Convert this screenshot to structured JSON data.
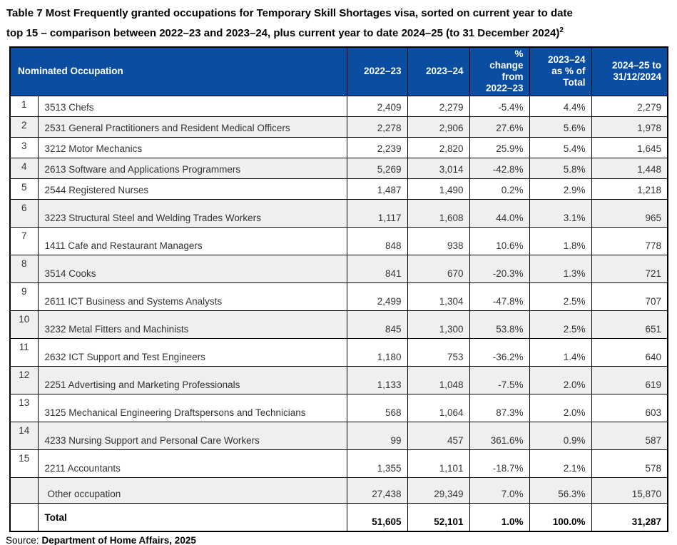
{
  "page": {
    "title_line1": "Table 7 Most Frequently granted occupations for Temporary Skill Shortages visa, sorted on current year to date",
    "title_line2": "top 15 – comparison between 2022–23 and 2023–24, plus current year to date 2024–25 (to 31 December 2024)",
    "title_footnote": "2",
    "source_prefix": "Source:",
    "source_text": "Department of Home Affairs, 2025"
  },
  "table": {
    "header": {
      "occupation": "Nominated Occupation",
      "col_2022_23": "2022–23",
      "col_2023_24": "2023–24",
      "col_pct_change": "% change from 2022–23",
      "col_pct_total": "2023–24 as % of Total",
      "col_ytd": "2024–25 to 31/12/2024"
    },
    "rows": [
      {
        "rank": "1",
        "occupation": "3513 Chefs",
        "v2022_23": "2,409",
        "v2023_24": "2,279",
        "pct_change": "-5.4%",
        "pct_total": "4.4%",
        "ytd": "2,279"
      },
      {
        "rank": "2",
        "occupation": "2531 General Practitioners and Resident Medical Officers",
        "v2022_23": "2,278",
        "v2023_24": "2,906",
        "pct_change": "27.6%",
        "pct_total": "5.6%",
        "ytd": "1,978"
      },
      {
        "rank": "3",
        "occupation": "3212 Motor Mechanics",
        "v2022_23": "2,239",
        "v2023_24": "2,820",
        "pct_change": "25.9%",
        "pct_total": "5.4%",
        "ytd": "1,645"
      },
      {
        "rank": "4",
        "occupation": "2613 Software and Applications Programmers",
        "v2022_23": "5,269",
        "v2023_24": "3,014",
        "pct_change": "-42.8%",
        "pct_total": "5.8%",
        "ytd": "1,448"
      },
      {
        "rank": "5",
        "occupation": "2544 Registered Nurses",
        "v2022_23": "1,487",
        "v2023_24": "1,490",
        "pct_change": "0.2%",
        "pct_total": "2.9%",
        "ytd": "1,218"
      },
      {
        "rank": "6",
        "occupation": "3223 Structural Steel and Welding Trades Workers",
        "v2022_23": "1,117",
        "v2023_24": "1,608",
        "pct_change": "44.0%",
        "pct_total": "3.1%",
        "ytd": "965"
      },
      {
        "rank": "7",
        "occupation": "1411 Cafe and Restaurant Managers",
        "v2022_23": "848",
        "v2023_24": "938",
        "pct_change": "10.6%",
        "pct_total": "1.8%",
        "ytd": "778"
      },
      {
        "rank": "8",
        "occupation": "3514 Cooks",
        "v2022_23": "841",
        "v2023_24": "670",
        "pct_change": "-20.3%",
        "pct_total": "1.3%",
        "ytd": "721"
      },
      {
        "rank": "9",
        "occupation": "2611 ICT Business and Systems Analysts",
        "v2022_23": "2,499",
        "v2023_24": "1,304",
        "pct_change": "-47.8%",
        "pct_total": "2.5%",
        "ytd": "707"
      },
      {
        "rank": "10",
        "occupation": "3232 Metal Fitters and Machinists",
        "v2022_23": "845",
        "v2023_24": "1,300",
        "pct_change": "53.8%",
        "pct_total": "2.5%",
        "ytd": "651"
      },
      {
        "rank": "11",
        "occupation": "2632 ICT Support and Test Engineers",
        "v2022_23": "1,180",
        "v2023_24": "753",
        "pct_change": "-36.2%",
        "pct_total": "1.4%",
        "ytd": "640"
      },
      {
        "rank": "12",
        "occupation": "2251 Advertising and Marketing Professionals",
        "v2022_23": "1,133",
        "v2023_24": "1,048",
        "pct_change": "-7.5%",
        "pct_total": "2.0%",
        "ytd": "619"
      },
      {
        "rank": "13",
        "occupation": "3125 Mechanical Engineering Draftspersons and Technicians",
        "v2022_23": "568",
        "v2023_24": "1,064",
        "pct_change": "87.3%",
        "pct_total": "2.0%",
        "ytd": "603"
      },
      {
        "rank": "14",
        "occupation": "4233 Nursing Support and Personal Care Workers",
        "v2022_23": "99",
        "v2023_24": "457",
        "pct_change": "361.6%",
        "pct_total": "0.9%",
        "ytd": "587"
      },
      {
        "rank": "15",
        "occupation": "2211 Accountants",
        "v2022_23": "1,355",
        "v2023_24": "1,101",
        "pct_change": "-18.7%",
        "pct_total": "2.1%",
        "ytd": "578"
      }
    ],
    "other_row": {
      "rank": "",
      "occupation": "Other occupation",
      "v2022_23": "27,438",
      "v2023_24": "29,349",
      "pct_change": "7.0%",
      "pct_total": "56.3%",
      "ytd": "15,870"
    },
    "total_row": {
      "rank": "",
      "occupation": "Total",
      "v2022_23": "51,605",
      "v2023_24": "52,101",
      "pct_change": "1.0%",
      "pct_total": "100.0%",
      "ytd": "31,287"
    }
  },
  "colors": {
    "header_bg": "#0B4DA1",
    "header_text": "#FFFFFF",
    "alt_row_bg": "#EFEFEF",
    "border": "#000000",
    "body_text": "#333333"
  }
}
